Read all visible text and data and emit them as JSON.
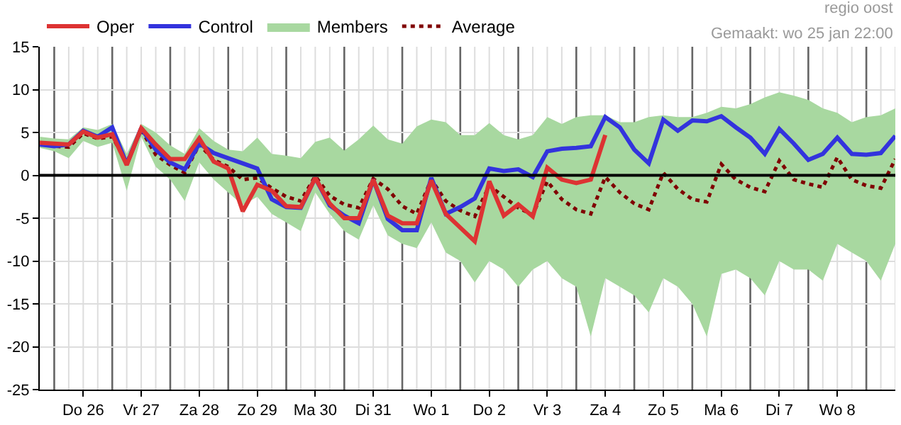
{
  "chart_data": {
    "type": "line",
    "annotations": [
      "regio oost",
      "Gemaakt: wo 25 jan 22:00"
    ],
    "categories": [
      null,
      null,
      null,
      "Do 26",
      null,
      null,
      null,
      "Vr 27",
      null,
      null,
      null,
      "Za 28",
      null,
      null,
      null,
      "Zo 29",
      null,
      null,
      null,
      "Ma 30",
      null,
      null,
      null,
      "Di 31",
      null,
      null,
      null,
      "Wo 1",
      null,
      null,
      null,
      "Do 2",
      null,
      null,
      null,
      "Vr 3",
      null,
      null,
      null,
      "Za 4",
      null,
      null,
      null,
      "Zo 5",
      null,
      null,
      null,
      "Ma 6",
      null,
      null,
      null,
      "Di 7",
      null,
      null,
      null,
      "Wo 8",
      null,
      null,
      null,
      null
    ],
    "series": [
      {
        "name": "Oper",
        "color": "#dd3333",
        "values": [
          3.8,
          3.7,
          3.6,
          5.1,
          4.4,
          4.8,
          1.2,
          5.5,
          3.6,
          1.9,
          1.9,
          4.3,
          1.6,
          0.8,
          -4.2,
          -1.1,
          -1.8,
          -3.6,
          -3.7,
          -0.3,
          -3.3,
          -5.0,
          -5.0,
          -0.5,
          -4.7,
          -5.6,
          -5.6,
          -0.6,
          -4.5,
          -6.1,
          -7.7,
          -0.7,
          -4.7,
          -3.4,
          -4.8,
          0.9,
          -0.5,
          -0.9,
          -0.5,
          4.7,
          null,
          null,
          null,
          null,
          null,
          null,
          null,
          null,
          null,
          null,
          null,
          null,
          null,
          null,
          null,
          null,
          null,
          null,
          null,
          null
        ]
      },
      {
        "name": "Control",
        "color": "#3333dd",
        "values": [
          3.6,
          3.4,
          3.6,
          5.2,
          4.5,
          5.6,
          1.3,
          5.5,
          3.0,
          1.5,
          0.7,
          3.7,
          2.6,
          2.0,
          1.4,
          0.8,
          -2.8,
          -3.7,
          -3.8,
          -0.3,
          -3.5,
          -4.7,
          -5.6,
          -0.5,
          -5.1,
          -6.4,
          -6.4,
          -0.3,
          -4.5,
          -3.7,
          -2.7,
          0.8,
          0.5,
          0.7,
          -0.2,
          2.8,
          3.1,
          3.2,
          3.4,
          6.8,
          5.6,
          3.0,
          1.4,
          6.5,
          5.2,
          6.4,
          6.3,
          6.9,
          5.6,
          4.4,
          2.5,
          5.4,
          3.7,
          1.8,
          2.5,
          4.4,
          2.5,
          2.4,
          2.6,
          4.6
        ]
      },
      {
        "name": "Members",
        "color": "#a8d8a0",
        "values": [
          null,
          null,
          null,
          null,
          null,
          null,
          null,
          null,
          null,
          null,
          null,
          null,
          null,
          null,
          null,
          null,
          null,
          null,
          null,
          null,
          null,
          null,
          null,
          null,
          null,
          null,
          null,
          null,
          null,
          null,
          null,
          null,
          null,
          null,
          null,
          null,
          null,
          null,
          null,
          null,
          null,
          null,
          null,
          null,
          null,
          null,
          null,
          null,
          null,
          null,
          null,
          null,
          null,
          null,
          null,
          null,
          null,
          null,
          null,
          null
        ],
        "lower": [
          3.2,
          2.8,
          2.0,
          4.0,
          3.3,
          3.8,
          -1.8,
          4.5,
          1.0,
          -0.5,
          -3.0,
          1.5,
          -0.5,
          -2.0,
          -3.5,
          -2.5,
          -4.5,
          -5.5,
          -6.5,
          -2.0,
          -4.5,
          -6.5,
          -7.5,
          -3.5,
          -7.0,
          -8.0,
          -8.5,
          -5.5,
          -9.0,
          -10.0,
          -12.5,
          -10.0,
          -11.0,
          -13.0,
          -11.0,
          -10.0,
          -12.0,
          -13.0,
          -18.8,
          -12.0,
          -13.0,
          -14.0,
          -16.0,
          -12.0,
          -13.0,
          -15.0,
          -18.8,
          -11.5,
          -11.0,
          -12.0,
          -14.0,
          -10.0,
          -11.0,
          -11.0,
          -12.3,
          -8.0,
          -9.0,
          -10.0,
          -12.3,
          -8.0
        ],
        "upper": [
          4.5,
          4.3,
          4.2,
          5.6,
          5.3,
          6.0,
          2.5,
          6.0,
          5.0,
          3.5,
          2.5,
          5.5,
          4.0,
          3.0,
          2.8,
          4.4,
          2.5,
          2.3,
          2.0,
          3.9,
          4.4,
          2.9,
          4.2,
          5.8,
          4.2,
          3.7,
          5.7,
          6.5,
          6.2,
          4.7,
          4.7,
          6.1,
          4.7,
          4.2,
          4.7,
          6.8,
          6.0,
          6.8,
          7.0,
          7.0,
          6.2,
          6.2,
          6.8,
          7.0,
          6.8,
          6.8,
          7.3,
          8.0,
          7.8,
          8.3,
          9.1,
          9.7,
          9.3,
          8.8,
          7.8,
          7.3,
          6.2,
          6.8,
          7.0,
          7.8
        ]
      },
      {
        "name": "Average",
        "color": "#800000",
        "line_style": "dotted",
        "values": [
          3.8,
          3.4,
          3.3,
          4.9,
          4.3,
          4.5,
          1.5,
          5.3,
          2.4,
          1.2,
          0.3,
          3.6,
          1.8,
          1.0,
          -0.5,
          -0.3,
          -1.5,
          -2.5,
          -3.0,
          -0.1,
          -2.4,
          -3.4,
          -3.8,
          -0.4,
          -1.6,
          -3.6,
          -4.5,
          -0.5,
          -3.0,
          -4.1,
          -4.8,
          -1.2,
          -2.5,
          -3.8,
          -4.6,
          -0.7,
          -2.8,
          -4.0,
          -4.5,
          -0.2,
          -2.0,
          -3.3,
          -4.0,
          0.3,
          -1.6,
          -2.8,
          -3.1,
          1.3,
          -0.5,
          -1.4,
          -1.9,
          1.7,
          -0.5,
          -1.0,
          -1.4,
          2.1,
          -0.5,
          -1.2,
          -1.5,
          1.9
        ]
      }
    ],
    "ylim": [
      -25,
      15
    ],
    "yticks": [
      -25,
      -20,
      -15,
      -10,
      -5,
      0,
      5,
      10,
      15
    ],
    "grid": true,
    "legend": "top left",
    "marker": "none",
    "line_style": "solid",
    "ref_lines": [
      {
        "axis": "y",
        "value": 0,
        "color": "#000000"
      }
    ]
  }
}
